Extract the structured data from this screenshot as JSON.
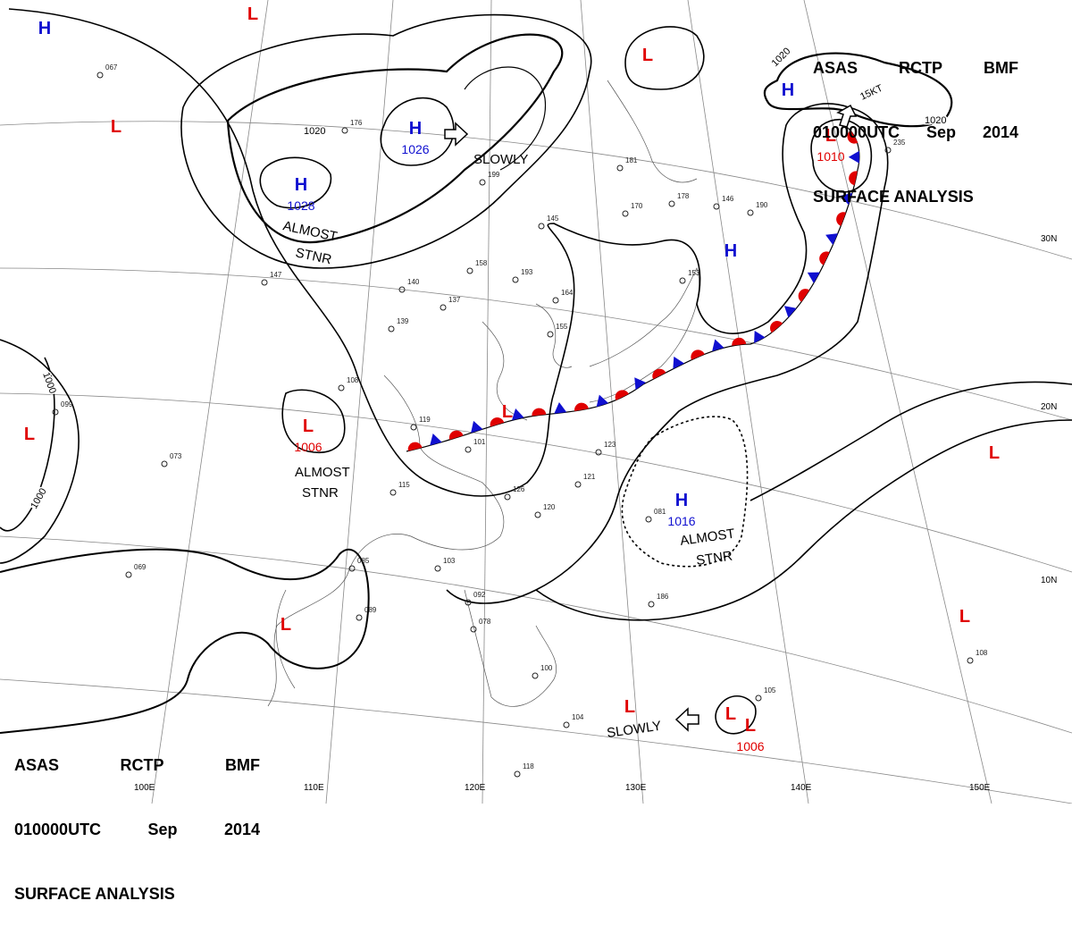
{
  "header": {
    "line1": [
      "ASAS",
      "RCTP",
      "BMF"
    ],
    "line2": [
      "010000UTC",
      "Sep",
      "2014"
    ],
    "line3": "SURFACE ANALYSIS"
  },
  "colors": {
    "high": "#1010d0",
    "low": "#e00000",
    "front_cold": "#1010d0",
    "front_warm": "#e00000",
    "isobar": "#000000",
    "grid": "#888888"
  },
  "lon_labels": [
    "100E",
    "110E",
    "120E",
    "130E",
    "140E",
    "150E"
  ],
  "lat_labels": [
    "30N",
    "20N",
    "10N"
  ],
  "isobar_labels": [
    "1020",
    "1020",
    "1020",
    "1000",
    "1000"
  ],
  "systems": [
    {
      "type": "H",
      "pressure": ""
    },
    {
      "type": "H",
      "pressure": "1028"
    },
    {
      "type": "H",
      "pressure": "1026"
    },
    {
      "type": "H",
      "pressure": ""
    },
    {
      "type": "H",
      "pressure": ""
    },
    {
      "type": "H",
      "pressure": "1016"
    },
    {
      "type": "L",
      "pressure": ""
    },
    {
      "type": "L",
      "pressure": ""
    },
    {
      "type": "L",
      "pressure": ""
    },
    {
      "type": "L",
      "pressure": "1006"
    },
    {
      "type": "L",
      "pressure": ""
    },
    {
      "type": "L",
      "pressure": "1010"
    },
    {
      "type": "L",
      "pressure": ""
    },
    {
      "type": "L",
      "pressure": ""
    },
    {
      "type": "L",
      "pressure": ""
    },
    {
      "type": "L",
      "pressure": ""
    },
    {
      "type": "L",
      "pressure": ""
    },
    {
      "type": "L",
      "pressure": ""
    },
    {
      "type": "L",
      "pressure": "1006"
    }
  ],
  "motions": {
    "slowly_1": "SLOWLY",
    "slowly_2": "SLOWLY",
    "almost_1": "ALMOST",
    "stnr_1": "STNR",
    "almost_2": "ALMOST",
    "stnr_2": "STNR",
    "almost_3": "ALMOST",
    "stnr_3": "STNR",
    "speed_ne": "15KT"
  },
  "station_numbers": [
    "235",
    "145",
    "158",
    "193",
    "164",
    "155",
    "140",
    "137",
    "139",
    "108",
    "119",
    "101",
    "115",
    "126",
    "120",
    "121",
    "123",
    "103",
    "085",
    "089",
    "092",
    "078",
    "100",
    "104",
    "105",
    "108",
    "118",
    "153",
    "146",
    "190",
    "170",
    "181",
    "178",
    "147",
    "067",
    "073",
    "099",
    "069",
    "081",
    "186",
    "199",
    "176"
  ]
}
